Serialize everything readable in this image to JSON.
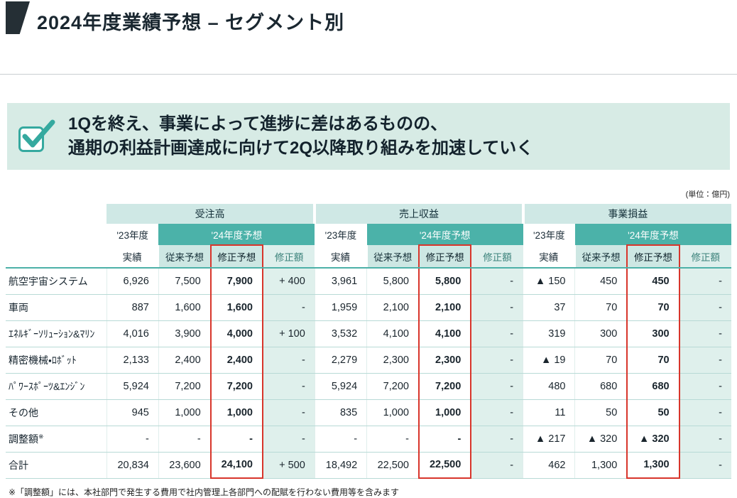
{
  "slide": {
    "title": "2024年度業績予想 – セグメント別",
    "unit_label": "(単位：億円)",
    "footnote": "※「調整額」には、本社部門で発生する費用で社内管理上各部門への配賦を行わない費用等を含みます"
  },
  "message": {
    "line1": "1Qを終え、事業によって進捗に差はあるものの、",
    "line2": "通期の利益計画達成に向けて2Q以降取り組みを加速していく"
  },
  "table": {
    "group_headers": [
      "受注高",
      "売上収益",
      "事業損益"
    ],
    "fy23_label": "'23年度",
    "fy23_sublabel": "実績",
    "fy24_label": "'24年度予想",
    "col_labels": {
      "previous": "従来予想",
      "revised": "修正予想",
      "change": "修正額"
    },
    "rows": [
      {
        "label": "航空宇宙システム",
        "cells": [
          "6,926",
          "7,500",
          "7,900",
          "+ 400",
          "3,961",
          "5,800",
          "5,800",
          "-",
          "▲ 150",
          "450",
          "450",
          "-"
        ]
      },
      {
        "label": "車両",
        "cells": [
          "887",
          "1,600",
          "1,600",
          "-",
          "1,959",
          "2,100",
          "2,100",
          "-",
          "37",
          "70",
          "70",
          "-"
        ]
      },
      {
        "label": "ｴﾈﾙｷﾞｰｿﾘｭｰｼｮﾝ&ﾏﾘﾝ",
        "cells": [
          "4,016",
          "3,900",
          "4,000",
          "+ 100",
          "3,532",
          "4,100",
          "4,100",
          "-",
          "319",
          "300",
          "300",
          "-"
        ]
      },
      {
        "label": "精密機械・ﾛﾎﾞｯﾄ",
        "cells": [
          "2,133",
          "2,400",
          "2,400",
          "-",
          "2,279",
          "2,300",
          "2,300",
          "-",
          "▲ 19",
          "70",
          "70",
          "-"
        ]
      },
      {
        "label": "ﾊﾟﾜｰｽﾎﾟｰﾂ&ｴﾝｼﾞﾝ",
        "cells": [
          "5,924",
          "7,200",
          "7,200",
          "-",
          "5,924",
          "7,200",
          "7,200",
          "-",
          "480",
          "680",
          "680",
          "-"
        ]
      },
      {
        "label": "その他",
        "cells": [
          "945",
          "1,000",
          "1,000",
          "-",
          "835",
          "1,000",
          "1,000",
          "-",
          "11",
          "50",
          "50",
          "-"
        ]
      },
      {
        "label": "調整額",
        "sup": "※",
        "cells": [
          "-",
          "-",
          "-",
          "-",
          "-",
          "-",
          "-",
          "-",
          "▲ 217",
          "▲ 320",
          "▲ 320",
          "-"
        ]
      },
      {
        "label": "合計",
        "total": true,
        "cells": [
          "20,834",
          "23,600",
          "24,100",
          "+ 500",
          "18,492",
          "22,500",
          "22,500",
          "-",
          "462",
          "1,300",
          "1,300",
          "-"
        ]
      }
    ]
  },
  "colors": {
    "accent_teal": "#35a99f",
    "band_teal": "#4bb2a9",
    "light_teal_header": "#cfe8e5",
    "pale_teal_cell": "#dff0ec",
    "message_bg": "#d7ebe5",
    "highlight_red": "#d8352b",
    "title_dark": "#1a2730"
  }
}
